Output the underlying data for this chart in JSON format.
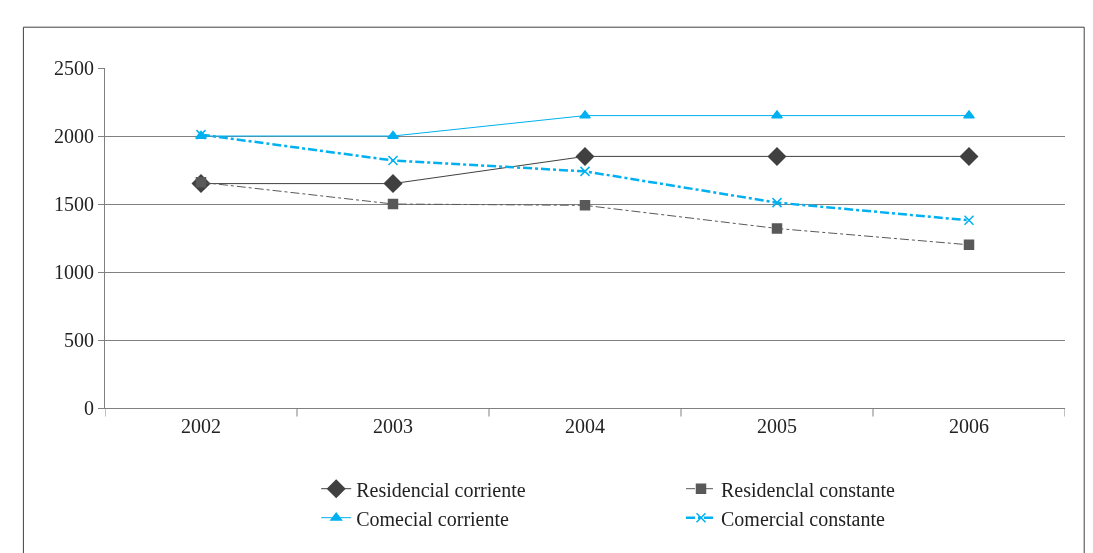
{
  "chart_data": {
    "type": "line",
    "categories": [
      "2002",
      "2003",
      "2004",
      "2005",
      "2006"
    ],
    "series": [
      {
        "name": "Residencial corriente",
        "color": "#404040",
        "values": [
          1650,
          1650,
          1850,
          1850,
          1850
        ],
        "marker": "diamond",
        "line_style": "solid"
      },
      {
        "name": "Residenclal constante",
        "color": "#595959",
        "values": [
          1660,
          1500,
          1490,
          1320,
          1200
        ],
        "marker": "square",
        "line_style": "dashdot"
      },
      {
        "name": "Comecial corriente",
        "color": "#00b0f0",
        "values": [
          2000,
          2000,
          2150,
          2150,
          2150
        ],
        "marker": "triangle",
        "line_style": "solid"
      },
      {
        "name": "Comercial constante",
        "color": "#00b0f0",
        "values": [
          2010,
          1820,
          1740,
          1510,
          1380
        ],
        "marker": "cross",
        "line_style": "dashdot"
      }
    ],
    "ylim": [
      0,
      2500
    ],
    "yticks": [
      0,
      500,
      1000,
      1500,
      2000,
      2500
    ],
    "grid": "y",
    "legend": "bottom"
  }
}
